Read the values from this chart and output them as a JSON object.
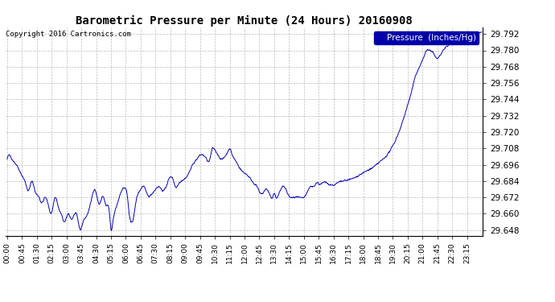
{
  "title": "Barometric Pressure per Minute (24 Hours) 20160908",
  "copyright_text": "Copyright 2016 Cartronics.com",
  "legend_label": "Pressure  (Inches/Hg)",
  "line_color": "#0000BB",
  "background_color": "#ffffff",
  "grid_color": "#bbbbbb",
  "legend_bg": "#0000AA",
  "legend_fg": "#ffffff",
  "ylim": [
    29.644,
    29.797
  ],
  "ytick_min": 29.648,
  "ytick_max": 29.792,
  "ytick_step": 0.012,
  "xtick_labels": [
    "00:00",
    "00:45",
    "01:30",
    "02:15",
    "03:00",
    "03:45",
    "04:30",
    "05:15",
    "06:00",
    "06:45",
    "07:30",
    "08:15",
    "09:00",
    "09:45",
    "10:30",
    "11:15",
    "12:00",
    "12:45",
    "13:30",
    "14:15",
    "15:00",
    "15:45",
    "16:30",
    "17:15",
    "18:00",
    "18:45",
    "19:30",
    "20:15",
    "21:00",
    "21:45",
    "22:30",
    "23:15"
  ]
}
